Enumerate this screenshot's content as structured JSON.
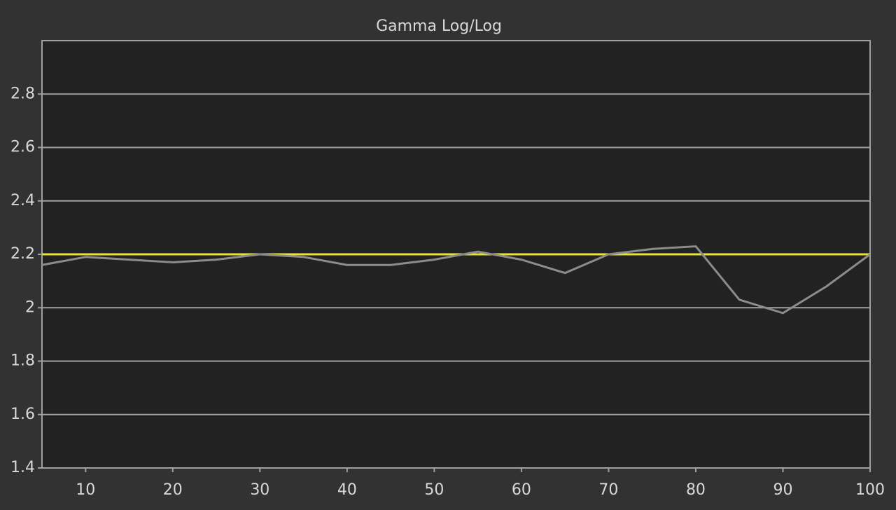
{
  "chart_data": {
    "type": "line",
    "title": "Gamma Log/Log",
    "x": [
      5,
      10,
      15,
      20,
      25,
      30,
      35,
      40,
      45,
      50,
      55,
      60,
      65,
      70,
      75,
      80,
      85,
      90,
      95,
      100
    ],
    "series": [
      {
        "color": "#e6e23a",
        "values": [
          2.2,
          2.2,
          2.2,
          2.2,
          2.2,
          2.2,
          2.2,
          2.2,
          2.2,
          2.2,
          2.2,
          2.2,
          2.2,
          2.2,
          2.2,
          2.2,
          2.2,
          2.2,
          2.2,
          2.2
        ]
      },
      {
        "color": "#8c8c8c",
        "values": [
          2.16,
          2.19,
          2.18,
          2.17,
          2.18,
          2.2,
          2.19,
          2.16,
          2.16,
          2.18,
          2.21,
          2.18,
          2.13,
          2.2,
          2.22,
          2.23,
          2.03,
          1.98,
          2.08,
          2.2
        ]
      }
    ],
    "xlim": [
      5,
      100
    ],
    "xticks": [
      10,
      20,
      30,
      40,
      50,
      60,
      70,
      80,
      90,
      100
    ],
    "ylim": [
      1.4,
      3.0
    ],
    "yticks": [
      1.4,
      1.6,
      1.8,
      2,
      2.2,
      2.4,
      2.6,
      2.8
    ],
    "grid": true
  }
}
